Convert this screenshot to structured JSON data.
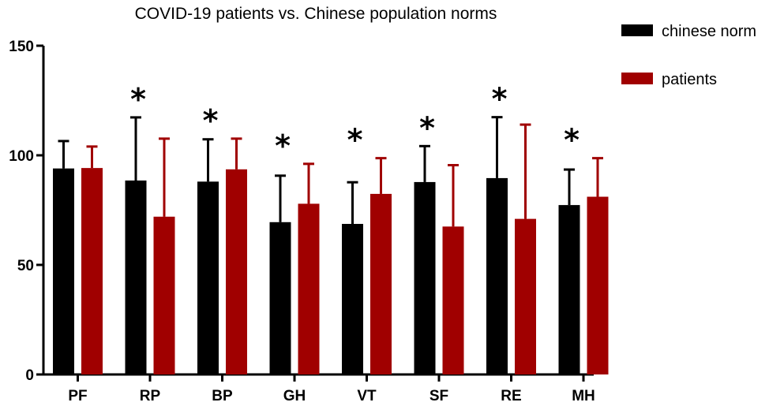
{
  "chart_data": {
    "type": "bar",
    "title": "COVID-19  patients vs. Chinese population norms",
    "xlabel": "",
    "ylabel": "",
    "ylim": [
      0,
      150
    ],
    "yticks": [
      0,
      50,
      100,
      150
    ],
    "categories": [
      "PF",
      "RP",
      "BP",
      "GH",
      "VT",
      "SF",
      "RE",
      "MH"
    ],
    "series": [
      {
        "name": "chinese norm",
        "color": "#000000",
        "values": [
          94,
          88.5,
          88,
          69.5,
          68.7,
          87.8,
          89.6,
          77.3
        ],
        "errors": [
          12.5,
          28.8,
          19.3,
          21.2,
          19,
          16.4,
          27.8,
          16.2
        ]
      },
      {
        "name": "patients",
        "color": "#a00000",
        "values": [
          94.2,
          72,
          93.6,
          77.9,
          82.4,
          67.5,
          71,
          81.1
        ],
        "errors": [
          9.8,
          35.6,
          14,
          18.2,
          16.3,
          28,
          43,
          17.6
        ]
      }
    ],
    "significance": [
      "",
      "*",
      "*",
      "*",
      "*",
      "*",
      "*",
      "*"
    ],
    "legend": [
      "chinese norm",
      "patients"
    ],
    "legend_position": "top-right",
    "grid": false
  }
}
